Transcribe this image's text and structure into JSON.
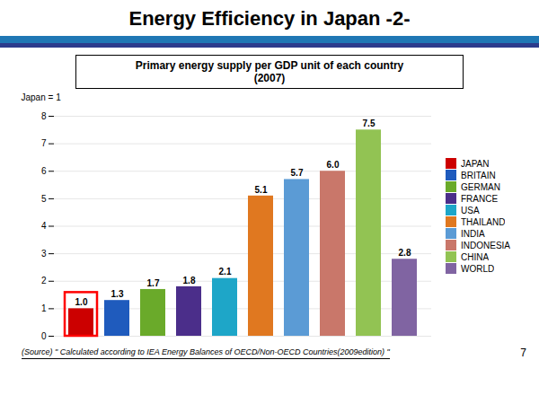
{
  "chart_data": {
    "type": "bar",
    "title": "Energy Efficiency in Japan -2-",
    "subtitle": "Primary energy supply per GDP unit of each country\n(2007)",
    "ylabel": "Japan = 1",
    "annotations": [
      "(Source) \" Calculated according to IEA Energy Balances of OECD/Non-OECD Countries(2009edition) \"",
      "7"
    ],
    "categories": [
      "JAPAN",
      "BRITAIN",
      "GERMAN",
      "FRANCE",
      "USA",
      "THAILAND",
      "INDIA",
      "INDONESIA",
      "CHINA",
      "WORLD"
    ],
    "values": [
      1.0,
      1.3,
      1.7,
      1.8,
      2.1,
      5.1,
      5.7,
      6.0,
      7.5,
      2.8
    ],
    "value_labels": [
      "1.0",
      "1.3",
      "1.7",
      "1.8",
      "2.1",
      "5.1",
      "5.7",
      "6.0",
      "7.5",
      "2.8"
    ],
    "colors": [
      "#cc0000",
      "#1f5bbd",
      "#6aaa2a",
      "#4b2e8a",
      "#1ea6c8",
      "#e07820",
      "#5b9bd5",
      "#c9776a",
      "#92c353",
      "#8064a2"
    ],
    "ylim": [
      0,
      8
    ],
    "yticks": [
      0,
      1,
      2,
      3,
      4,
      5,
      6,
      7,
      8
    ],
    "grid": true,
    "data_labels": true,
    "tick_labels": "y",
    "legend": "right"
  }
}
